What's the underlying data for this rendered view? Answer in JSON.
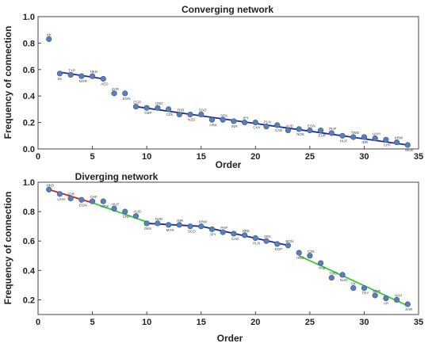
{
  "chart_data": [
    {
      "type": "scatter",
      "title": "Converging network",
      "xlabel": "Order",
      "ylabel": "Frequency of connection",
      "xlim": [
        0,
        35
      ],
      "ylim": [
        0,
        1.0
      ],
      "xticks": [
        "0",
        "5",
        "10",
        "15",
        "20",
        "25",
        "30",
        "35"
      ],
      "yticks": [
        "0.0",
        "0.2",
        "0.4",
        "0.6",
        "0.8",
        "1.0"
      ],
      "grid": false,
      "marker_color": "#5b7fb5",
      "fit_lines": [
        {
          "x": [
            2,
            6
          ],
          "y": [
            0.58,
            0.53
          ],
          "color": "#1a2a9a"
        },
        {
          "x": [
            9,
            34
          ],
          "y": [
            0.32,
            0.03
          ],
          "color": "#1a2a9a"
        }
      ],
      "points": [
        {
          "x": 1,
          "y": 0.83,
          "label": "XK"
        },
        {
          "x": 2,
          "y": 0.57,
          "label": "SK"
        },
        {
          "x": 3,
          "y": 0.56,
          "label": "TYP"
        },
        {
          "x": 4,
          "y": 0.55,
          "label": "MXR"
        },
        {
          "x": 5,
          "y": 0.55,
          "label": "HKD"
        },
        {
          "x": 6,
          "y": 0.53,
          "label": "AED"
        },
        {
          "x": 7,
          "y": 0.42,
          "label": "ZAR"
        },
        {
          "x": 8,
          "y": 0.42,
          "label": "EGN"
        },
        {
          "x": 9,
          "y": 0.32,
          "label": "EGP"
        },
        {
          "x": 10,
          "y": 0.31,
          "label": "GBP"
        },
        {
          "x": 11,
          "y": 0.31,
          "label": "USD"
        },
        {
          "x": 12,
          "y": 0.3,
          "label": "CZK"
        },
        {
          "x": 13,
          "y": 0.26,
          "label": "THB"
        },
        {
          "x": 14,
          "y": 0.26,
          "label": "NZD"
        },
        {
          "x": 15,
          "y": 0.26,
          "label": "SGD"
        },
        {
          "x": 16,
          "y": 0.22,
          "label": "HRK"
        },
        {
          "x": 17,
          "y": 0.22,
          "label": "SEK"
        },
        {
          "x": 18,
          "y": 0.21,
          "label": "INR"
        },
        {
          "x": 19,
          "y": 0.2,
          "label": "JPY"
        },
        {
          "x": 20,
          "y": 0.2,
          "label": "CNY"
        },
        {
          "x": 21,
          "y": 0.17,
          "label": "PLN"
        },
        {
          "x": 22,
          "y": 0.18,
          "label": "CAD"
        },
        {
          "x": 23,
          "y": 0.14,
          "label": "AUD"
        },
        {
          "x": 24,
          "y": 0.15,
          "label": "NOK"
        },
        {
          "x": 25,
          "y": 0.14,
          "label": "EGN"
        },
        {
          "x": 26,
          "y": 0.14,
          "label": "EUR"
        },
        {
          "x": 27,
          "y": 0.12,
          "label": "PHP"
        },
        {
          "x": 28,
          "y": 0.1,
          "label": "HUF"
        },
        {
          "x": 29,
          "y": 0.09,
          "label": "TWD"
        },
        {
          "x": 30,
          "y": 0.09,
          "label": "IDR"
        },
        {
          "x": 31,
          "y": 0.08,
          "label": "UAH"
        },
        {
          "x": 32,
          "y": 0.07,
          "label": "CHF"
        },
        {
          "x": 33,
          "y": 0.05,
          "label": "KRW"
        },
        {
          "x": 34,
          "y": 0.03,
          "label": "MOK"
        }
      ]
    },
    {
      "type": "scatter",
      "title": "Diverging network",
      "xlabel": "Order",
      "ylabel": "Frequency of connection",
      "xlim": [
        0,
        35
      ],
      "ylim": [
        0.1,
        1.0
      ],
      "xticks": [
        "0",
        "5",
        "10",
        "15",
        "20",
        "25",
        "30",
        "35"
      ],
      "yticks": [
        "0.2",
        "0.4",
        "0.6",
        "0.8",
        "1.0"
      ],
      "grid": false,
      "marker_color": "#5b7fb5",
      "fit_lines": [
        {
          "x": [
            1,
            5
          ],
          "y": [
            0.95,
            0.86
          ],
          "color": "#cc2222"
        },
        {
          "x": [
            5,
            10
          ],
          "y": [
            0.86,
            0.73
          ],
          "color": "#33cc33"
        },
        {
          "x": [
            10,
            15
          ],
          "y": [
            0.72,
            0.7
          ],
          "color": "#1a2a9a"
        },
        {
          "x": [
            15,
            23
          ],
          "y": [
            0.7,
            0.57
          ],
          "color": "#1a2a9a"
        },
        {
          "x": [
            24,
            34
          ],
          "y": [
            0.5,
            0.16
          ],
          "color": "#33cc33"
        }
      ],
      "points": [
        {
          "x": 1,
          "y": 0.95,
          "label": "HKD"
        },
        {
          "x": 2,
          "y": 0.92,
          "label": "UAH"
        },
        {
          "x": 3,
          "y": 0.89,
          "label": "IDR"
        },
        {
          "x": 4,
          "y": 0.88,
          "label": "EGN"
        },
        {
          "x": 5,
          "y": 0.87,
          "label": "CHF"
        },
        {
          "x": 6,
          "y": 0.87,
          "label": "MOK"
        },
        {
          "x": 7,
          "y": 0.82,
          "label": "HUF"
        },
        {
          "x": 8,
          "y": 0.8,
          "label": "CNY"
        },
        {
          "x": 9,
          "y": 0.77,
          "label": "AUD"
        },
        {
          "x": 10,
          "y": 0.72,
          "label": "DKK"
        },
        {
          "x": 11,
          "y": 0.72,
          "label": "NZD"
        },
        {
          "x": 12,
          "y": 0.71,
          "label": "MYR"
        },
        {
          "x": 13,
          "y": 0.71,
          "label": "INR"
        },
        {
          "x": 14,
          "y": 0.7,
          "label": "SGD"
        },
        {
          "x": 15,
          "y": 0.7,
          "label": "KRW"
        },
        {
          "x": 16,
          "y": 0.68,
          "label": "JPY"
        },
        {
          "x": 17,
          "y": 0.66,
          "label": "PHP"
        },
        {
          "x": 18,
          "y": 0.65,
          "label": "CAD"
        },
        {
          "x": 19,
          "y": 0.64,
          "label": "HRK"
        },
        {
          "x": 20,
          "y": 0.62,
          "label": "PLN"
        },
        {
          "x": 21,
          "y": 0.6,
          "label": "SEK"
        },
        {
          "x": 22,
          "y": 0.58,
          "label": "EGP"
        },
        {
          "x": 23,
          "y": 0.57,
          "label": "BGN"
        },
        {
          "x": 24,
          "y": 0.52,
          "label": "HKD"
        },
        {
          "x": 25,
          "y": 0.5,
          "label": "CZK"
        },
        {
          "x": 26,
          "y": 0.45,
          "label": "THB"
        },
        {
          "x": 27,
          "y": 0.35,
          "label": "TWD"
        },
        {
          "x": 28,
          "y": 0.37,
          "label": "NAD"
        },
        {
          "x": 29,
          "y": 0.28,
          "label": "SK"
        },
        {
          "x": 30,
          "y": 0.28,
          "label": "TRY"
        },
        {
          "x": 31,
          "y": 0.23,
          "label": "MXR"
        },
        {
          "x": 32,
          "y": 0.21,
          "label": "AR"
        },
        {
          "x": 33,
          "y": 0.2,
          "label": "UAH"
        },
        {
          "x": 34,
          "y": 0.17,
          "label": "ZAR"
        }
      ]
    }
  ]
}
